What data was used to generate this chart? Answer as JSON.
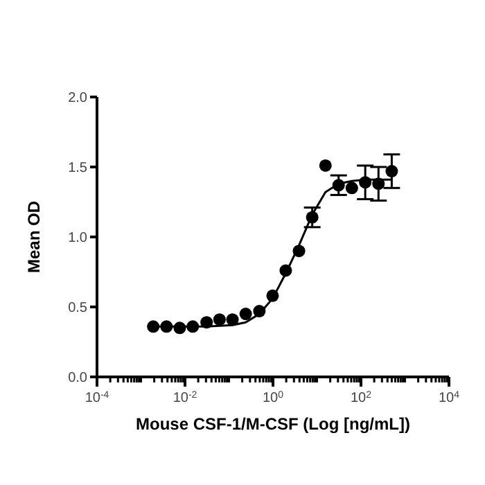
{
  "chart_data": {
    "type": "scatter",
    "xlabel": "Mouse CSF-1/M-CSF (Log [ng/mL])",
    "ylabel": "Mean OD",
    "log": "x",
    "marker": "circle",
    "xlim": [
      0.0001,
      10000
    ],
    "xticks": [
      {
        "value": 0.0001,
        "label": "10$^{-4}$"
      },
      {
        "value": 0.0002,
        "label": null
      },
      {
        "value": 0.0003,
        "label": null
      },
      {
        "value": 0.0004,
        "label": null
      },
      {
        "value": 0.0005,
        "label": null
      },
      {
        "value": 0.0006,
        "label": null
      },
      {
        "value": 0.0007,
        "label": null
      },
      {
        "value": 0.0008,
        "label": null
      },
      {
        "value": 0.0009,
        "label": null
      },
      {
        "value": 0.001,
        "label": null
      },
      {
        "value": 0.002,
        "label": null
      },
      {
        "value": 0.003,
        "label": null
      },
      {
        "value": 0.004,
        "label": null
      },
      {
        "value": 0.005,
        "label": null
      },
      {
        "value": 0.006,
        "label": null
      },
      {
        "value": 0.007,
        "label": null
      },
      {
        "value": 0.008,
        "label": null
      },
      {
        "value": 0.009,
        "label": null
      },
      {
        "value": 0.01,
        "label": "10$^{-2}$"
      },
      {
        "value": 0.02,
        "label": null
      },
      {
        "value": 0.03,
        "label": null
      },
      {
        "value": 0.04,
        "label": null
      },
      {
        "value": 0.05,
        "label": null
      },
      {
        "value": 0.06,
        "label": null
      },
      {
        "value": 0.07,
        "label": null
      },
      {
        "value": 0.08,
        "label": null
      },
      {
        "value": 0.09,
        "label": null
      },
      {
        "value": 0.1,
        "label": null
      },
      {
        "value": 0.2,
        "label": null
      },
      {
        "value": 0.3,
        "label": null
      },
      {
        "value": 0.4,
        "label": null
      },
      {
        "value": 0.5,
        "label": null
      },
      {
        "value": 0.6,
        "label": null
      },
      {
        "value": 0.7,
        "label": null
      },
      {
        "value": 0.8,
        "label": null
      },
      {
        "value": 0.9,
        "label": null
      },
      {
        "value": 1,
        "label": "10$^{0}$"
      },
      {
        "value": 2,
        "label": null
      },
      {
        "value": 3,
        "label": null
      },
      {
        "value": 4,
        "label": null
      },
      {
        "value": 5,
        "label": null
      },
      {
        "value": 6,
        "label": null
      },
      {
        "value": 7,
        "label": null
      },
      {
        "value": 8,
        "label": null
      },
      {
        "value": 9,
        "label": null
      },
      {
        "value": 10,
        "label": null
      },
      {
        "value": 20,
        "label": null
      },
      {
        "value": 30,
        "label": null
      },
      {
        "value": 40,
        "label": null
      },
      {
        "value": 50,
        "label": null
      },
      {
        "value": 60,
        "label": null
      },
      {
        "value": 70,
        "label": null
      },
      {
        "value": 80,
        "label": null
      },
      {
        "value": 90,
        "label": null
      },
      {
        "value": 100,
        "label": "10$^{2}$"
      },
      {
        "value": 200,
        "label": null
      },
      {
        "value": 300,
        "label": null
      },
      {
        "value": 400,
        "label": null
      },
      {
        "value": 500,
        "label": null
      },
      {
        "value": 600,
        "label": null
      },
      {
        "value": 700,
        "label": null
      },
      {
        "value": 800,
        "label": null
      },
      {
        "value": 900,
        "label": null
      },
      {
        "value": 1000,
        "label": null
      },
      {
        "value": 2000,
        "label": null
      },
      {
        "value": 3000,
        "label": null
      },
      {
        "value": 4000,
        "label": null
      },
      {
        "value": 5000,
        "label": null
      },
      {
        "value": 6000,
        "label": null
      },
      {
        "value": 7000,
        "label": null
      },
      {
        "value": 8000,
        "label": null
      },
      {
        "value": 9000,
        "label": null
      },
      {
        "value": 10000,
        "label": "10$^{4}$"
      }
    ],
    "ylim": [
      0,
      2
    ],
    "yticks": [
      {
        "value": 0,
        "label": "0.0"
      },
      {
        "value": 0.5,
        "label": "0.5"
      },
      {
        "value": 1,
        "label": "1.0"
      },
      {
        "value": 1.5,
        "label": "1.5"
      },
      {
        "value": 2,
        "label": "2.0"
      }
    ],
    "series": [
      {
        "color": "#000000",
        "x": [
          0.0019,
          0.0038,
          0.0076,
          0.015,
          0.031,
          0.061,
          0.12,
          0.24,
          0.49,
          0.98,
          1.95,
          3.9,
          7.8,
          15.6,
          31,
          62,
          125,
          250,
          500
        ],
        "values": [
          0.36,
          0.36,
          0.35,
          0.36,
          0.39,
          0.41,
          0.41,
          0.45,
          0.47,
          0.58,
          0.76,
          0.9,
          1.14,
          1.51,
          1.37,
          1.35,
          1.39,
          1.38,
          1.47
        ],
        "errors": [
          null,
          null,
          null,
          null,
          null,
          null,
          null,
          null,
          null,
          null,
          null,
          null,
          0.07,
          null,
          0.07,
          null,
          0.12,
          0.12,
          0.12
        ]
      },
      {
        "type": "line",
        "color": "#000000",
        "marker": "none",
        "x": [
          0.0019,
          0.0076,
          0.031,
          0.12,
          0.24,
          0.49,
          0.98,
          1.95,
          3.9,
          7.8,
          15.6,
          31,
          62,
          125,
          250,
          500
        ],
        "values": [
          0.36,
          0.36,
          0.36,
          0.37,
          0.39,
          0.45,
          0.56,
          0.74,
          0.94,
          1.16,
          1.32,
          1.38,
          1.4,
          1.41,
          1.41,
          1.41
        ]
      }
    ]
  }
}
